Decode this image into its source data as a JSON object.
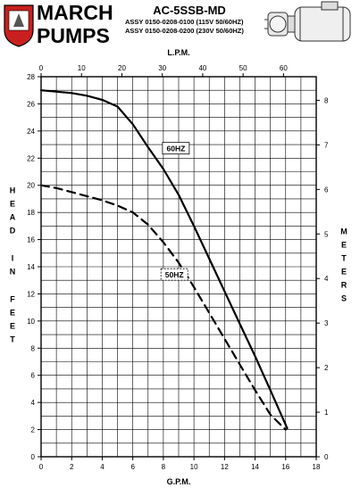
{
  "header": {
    "brand_line1": "MARCH",
    "brand_line2": "PUMPS",
    "model": "AC-5SSB-MD",
    "assy_lines": [
      "ASSY 0150-0208-0100 (115V 50/60HZ)",
      "ASSY 0150-0208-0200 (230V 50/60HZ)"
    ]
  },
  "chart_data": {
    "type": "line",
    "title": "AC-5SSB-MD",
    "xlabel": "G.P.M.",
    "x2label": "L.P.M.",
    "ylabel": "HEAD IN FEET",
    "y2label": "METERS",
    "xlim": [
      0,
      18
    ],
    "x2lim": [
      0,
      68.1
    ],
    "ylim": [
      0,
      28
    ],
    "y2lim": [
      0,
      8.53
    ],
    "xticks": [
      0,
      2,
      4,
      6,
      8,
      10,
      12,
      14,
      16,
      18
    ],
    "x2ticks": [
      0,
      10,
      20,
      30,
      40,
      50,
      60
    ],
    "yticks": [
      0,
      2,
      4,
      6,
      8,
      10,
      12,
      14,
      16,
      18,
      20,
      22,
      24,
      26,
      28
    ],
    "y2ticks": [
      0,
      1,
      2,
      3,
      4,
      5,
      6,
      7,
      8
    ],
    "grid": true,
    "series": [
      {
        "name": "60HZ",
        "style": "solid",
        "x": [
          0,
          2,
          3,
          4,
          5,
          6,
          7,
          8,
          9,
          10,
          11,
          12,
          13,
          14,
          15,
          16.1
        ],
        "y": [
          27.0,
          26.8,
          26.6,
          26.3,
          25.8,
          24.5,
          22.8,
          21.2,
          19.3,
          17.0,
          14.6,
          12.2,
          9.8,
          7.4,
          4.9,
          2.1
        ]
      },
      {
        "name": "50HZ",
        "style": "dashed",
        "x": [
          0,
          1,
          2,
          3,
          4,
          5,
          6,
          7,
          8,
          9,
          10,
          11,
          12,
          13,
          14,
          15,
          16
        ],
        "y": [
          20.0,
          19.8,
          19.5,
          19.2,
          18.9,
          18.5,
          18.0,
          17.1,
          15.8,
          14.3,
          12.5,
          10.6,
          8.7,
          6.8,
          4.9,
          3.1,
          2.0
        ]
      }
    ]
  }
}
